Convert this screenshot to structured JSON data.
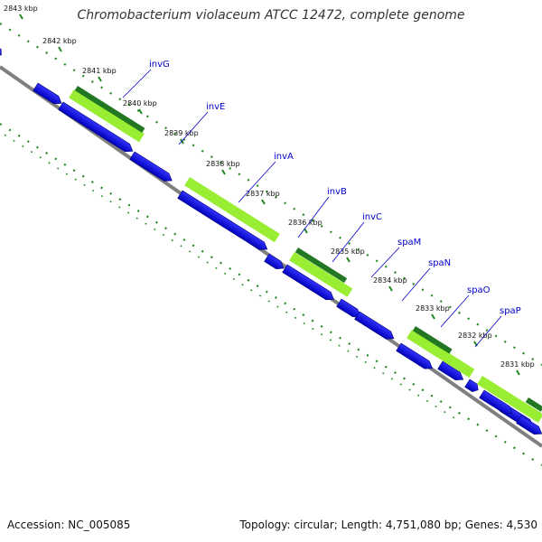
{
  "title": "Chromobacterium violaceum ATCC 12472, complete genome",
  "footer": {
    "accession": "Accession: NC_005085",
    "summary": "Topology: circular; Length: 4,751,080 bp; Genes: 4,530"
  },
  "scale_labels": [
    "2843 kbp",
    "2842 kbp",
    "2841 kbp",
    "2840 kbp",
    "2839 kbp",
    "2838 kbp",
    "2837 kbp",
    "2836 kbp",
    "2835 kbp",
    "2834 kbp",
    "2833 kbp",
    "2832 kbp",
    "2831 kbp"
  ],
  "gene_labels": [
    "invG",
    "invE",
    "invA",
    "invB",
    "invC",
    "spaM",
    "spaN",
    "spaO",
    "spaP"
  ],
  "colors": {
    "backbone": "#808080",
    "cds_blue": "#0000ee",
    "hit_light": "#99ee33",
    "hit_dark": "#227722",
    "dotted_ring": "#228822",
    "label_blue": "#0000cc"
  }
}
